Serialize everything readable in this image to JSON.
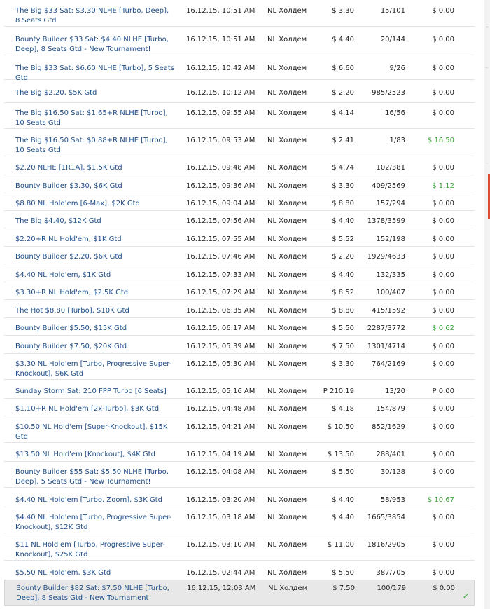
{
  "tournaments": [
    {
      "name": "The Big $33 Sat: $3.30 NLHE [Turbo, Deep], 8 Seats Gtd",
      "date": "16.12.15, 10:51 AM",
      "game": "NL Холдем",
      "buyin": "$ 3.30",
      "entrants": "15/101",
      "winnings": "$ 0.00",
      "win": false
    },
    {
      "name": "Bounty Builder $33 Sat: $4.40 NLHE [Turbo, Deep], 8 Seats Gtd - New Tournament!",
      "date": "16.12.15, 10:51 AM",
      "game": "NL Холдем",
      "buyin": "$ 4.40",
      "entrants": "20/144",
      "winnings": "$ 0.00",
      "win": false
    },
    {
      "name": "The Big $33 Sat: $6.60 NLHE [Turbo], 5 Seats Gtd",
      "date": "16.12.15, 10:42 AM",
      "game": "NL Холдем",
      "buyin": "$ 6.60",
      "entrants": "9/26",
      "winnings": "$ 0.00",
      "win": false
    },
    {
      "name": "The Big $2.20, $5K Gtd",
      "date": "16.12.15, 10:12 AM",
      "game": "NL Холдем",
      "buyin": "$ 2.20",
      "entrants": "985/2523",
      "winnings": "$ 0.00",
      "win": false
    },
    {
      "name": "The Big $16.50 Sat: $1.65+R NLHE [Turbo], 10 Seats Gtd",
      "date": "16.12.15, 09:55 AM",
      "game": "NL Холдем",
      "buyin": "$ 4.14",
      "entrants": "16/56",
      "winnings": "$ 0.00",
      "win": false
    },
    {
      "name": "The Big $16.50 Sat: $0.88+R NLHE [Turbo], 10 Seats Gtd",
      "date": "16.12.15, 09:53 AM",
      "game": "NL Холдем",
      "buyin": "$ 2.41",
      "entrants": "1/83",
      "winnings": "$ 16.50",
      "win": true
    },
    {
      "name": "$2.20 NLHE [1R1A], $1.5K Gtd",
      "date": "16.12.15, 09:48 AM",
      "game": "NL Холдем",
      "buyin": "$ 4.74",
      "entrants": "102/381",
      "winnings": "$ 0.00",
      "win": false
    },
    {
      "name": "Bounty Builder $3.30, $6K Gtd",
      "date": "16.12.15, 09:36 AM",
      "game": "NL Холдем",
      "buyin": "$ 3.30",
      "entrants": "409/2569",
      "winnings": "$ 1.12",
      "win": true
    },
    {
      "name": "$8.80 NL Hold'em [6-Max], $2K Gtd",
      "date": "16.12.15, 09:04 AM",
      "game": "NL Холдем",
      "buyin": "$ 8.80",
      "entrants": "157/294",
      "winnings": "$ 0.00",
      "win": false
    },
    {
      "name": "The Big $4.40, $12K Gtd",
      "date": "16.12.15, 07:56 AM",
      "game": "NL Холдем",
      "buyin": "$ 4.40",
      "entrants": "1378/3599",
      "winnings": "$ 0.00",
      "win": false
    },
    {
      "name": "$2.20+R NL Hold'em, $1K Gtd",
      "date": "16.12.15, 07:55 AM",
      "game": "NL Холдем",
      "buyin": "$ 5.52",
      "entrants": "152/198",
      "winnings": "$ 0.00",
      "win": false
    },
    {
      "name": "Bounty Builder $2.20, $6K Gtd",
      "date": "16.12.15, 07:46 AM",
      "game": "NL Холдем",
      "buyin": "$ 2.20",
      "entrants": "1929/4633",
      "winnings": "$ 0.00",
      "win": false
    },
    {
      "name": "$4.40 NL Hold'em, $1K Gtd",
      "date": "16.12.15, 07:33 AM",
      "game": "NL Холдем",
      "buyin": "$ 4.40",
      "entrants": "132/335",
      "winnings": "$ 0.00",
      "win": false
    },
    {
      "name": "$3.30+R NL Hold'em, $2.5K Gtd",
      "date": "16.12.15, 07:29 AM",
      "game": "NL Холдем",
      "buyin": "$ 8.52",
      "entrants": "100/407",
      "winnings": "$ 0.00",
      "win": false
    },
    {
      "name": "The Hot $8.80 [Turbo], $10K Gtd",
      "date": "16.12.15, 06:35 AM",
      "game": "NL Холдем",
      "buyin": "$ 8.80",
      "entrants": "415/1592",
      "winnings": "$ 0.00",
      "win": false
    },
    {
      "name": "Bounty Builder $5.50, $15K Gtd",
      "date": "16.12.15, 06:17 AM",
      "game": "NL Холдем",
      "buyin": "$ 5.50",
      "entrants": "2287/3772",
      "winnings": "$ 0.62",
      "win": true
    },
    {
      "name": "Bounty Builder $7.50, $20K Gtd",
      "date": "16.12.15, 05:39 AM",
      "game": "NL Холдем",
      "buyin": "$ 7.50",
      "entrants": "1301/4714",
      "winnings": "$ 0.00",
      "win": false
    },
    {
      "name": "$3.30 NL Hold'em [Turbo, Progressive Super-Knockout], $6K Gtd",
      "date": "16.12.15, 05:30 AM",
      "game": "NL Холдем",
      "buyin": "$ 3.30",
      "entrants": "764/2169",
      "winnings": "$ 0.00",
      "win": false
    },
    {
      "name": "Sunday Storm Sat: 210 FPP Turbo [6 Seats]",
      "date": "16.12.15, 05:16 AM",
      "game": "NL Холдем",
      "buyin": "P 210.19",
      "entrants": "13/20",
      "winnings": "P 0.00",
      "win": false
    },
    {
      "name": "$1.10+R NL Hold'em [2x-Turbo], $3K Gtd",
      "date": "16.12.15, 04:48 AM",
      "game": "NL Холдем",
      "buyin": "$ 4.18",
      "entrants": "154/879",
      "winnings": "$ 0.00",
      "win": false
    },
    {
      "name": "$10.50 NL Hold'em [Super-Knockout], $15K Gtd",
      "date": "16.12.15, 04:21 AM",
      "game": "NL Холдем",
      "buyin": "$ 10.50",
      "entrants": "852/1629",
      "winnings": "$ 0.00",
      "win": false
    },
    {
      "name": "$13.50 NL Hold'em [Knockout], $4K Gtd",
      "date": "16.12.15, 04:19 AM",
      "game": "NL Холдем",
      "buyin": "$ 13.50",
      "entrants": "288/401",
      "winnings": "$ 0.00",
      "win": false
    },
    {
      "name": "Bounty Builder $55 Sat: $5.50 NLHE [Turbo, Deep], 5 Seats Gtd - New Tournament!",
      "date": "16.12.15, 04:08 AM",
      "game": "NL Холдем",
      "buyin": "$ 5.50",
      "entrants": "30/128",
      "winnings": "$ 0.00",
      "win": false
    },
    {
      "name": "$4.40 NL Hold'em [Turbo, Zoom], $3K Gtd",
      "date": "16.12.15, 03:20 AM",
      "game": "NL Холдем",
      "buyin": "$ 4.40",
      "entrants": "58/953",
      "winnings": "$ 10.67",
      "win": true
    },
    {
      "name": "$4.40 NL Hold'em [Turbo, Progressive Super-Knockout], $12K Gtd",
      "date": "16.12.15, 03:18 AM",
      "game": "NL Холдем",
      "buyin": "$ 4.40",
      "entrants": "1665/3854",
      "winnings": "$ 0.00",
      "win": false
    },
    {
      "name": "$11 NL Hold'em [Turbo, Progressive Super-Knockout], $25K Gtd",
      "date": "16.12.15, 03:10 AM",
      "game": "NL Холдем",
      "buyin": "$ 11.00",
      "entrants": "1816/2905",
      "winnings": "$ 0.00",
      "win": false
    },
    {
      "name": "$5.50 NL Hold'em, $3K Gtd",
      "date": "16.12.15, 02:44 AM",
      "game": "NL Холдем",
      "buyin": "$ 5.50",
      "entrants": "387/705",
      "winnings": "$ 0.00",
      "win": false
    },
    {
      "name": "Bounty Builder $82 Sat: $7.50 NLHE [Turbo, Deep], 8 Seats Gtd - New Tournament!",
      "date": "16.12.15, 12:03 AM",
      "game": "NL Холдем",
      "buyin": "$ 7.50",
      "entrants": "100/179",
      "winnings": "$ 0.00",
      "win": false,
      "selected": true
    }
  ],
  "colors": {
    "link": "#1f4e87",
    "win": "#3aa33a",
    "selected": "#e8e8e8",
    "scroll_marker": "#e04a2a"
  },
  "icons": {
    "selected_row": "check-icon",
    "scroll_up": "chevron-up-icon"
  }
}
